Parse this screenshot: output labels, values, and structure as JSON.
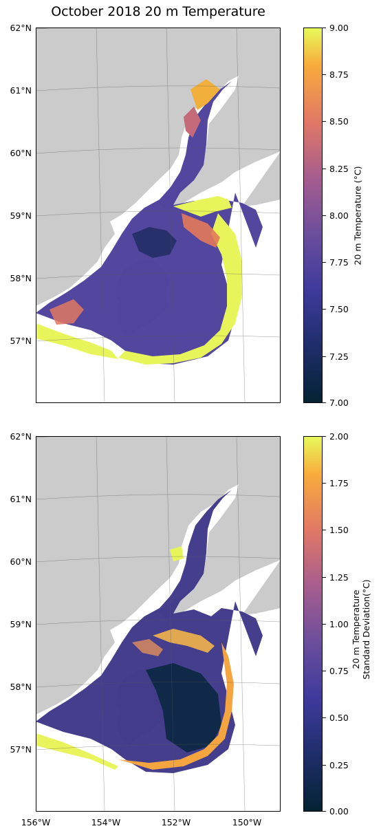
{
  "title": "October 2018 20 m Temperature",
  "lat_labels": [
    "62°N",
    "61°N",
    "60°N",
    "59°N",
    "58°N",
    "57°N"
  ],
  "lon_labels": [
    "156°W",
    "154°W",
    "152°W",
    "150°W"
  ],
  "colors": {
    "land": "#cbcbcb",
    "ocean": "#ffffff",
    "map_border": "#000000"
  },
  "panels": [
    {
      "name": "mean",
      "colorbar": {
        "label": "20 m Temperature (°C)",
        "ticks": [
          "9.00",
          "8.75",
          "8.50",
          "8.25",
          "8.00",
          "7.75",
          "7.50",
          "7.25",
          "7.00"
        ],
        "range": [
          7.0,
          9.0
        ],
        "colormap": "thermal"
      }
    },
    {
      "name": "stdev",
      "colorbar": {
        "label_line1": "20 m Temperature",
        "label_line2": "Standard Deviation(°C)",
        "ticks": [
          "2.00",
          "1.75",
          "1.50",
          "1.25",
          "1.00",
          "0.75",
          "0.50",
          "0.25",
          "0.00"
        ],
        "range": [
          0.0,
          2.0
        ],
        "colormap": "thermal"
      }
    }
  ]
}
